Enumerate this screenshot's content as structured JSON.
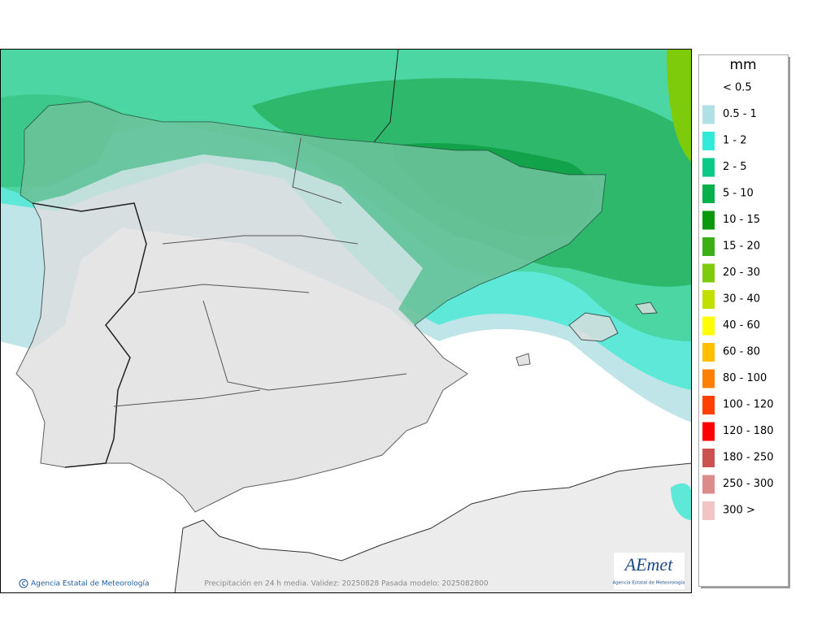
{
  "legend": {
    "title": "mm",
    "items": [
      {
        "label": "< 0.5"
      },
      {
        "label": "0.5 - 1",
        "color": "#b0dfe4"
      },
      {
        "label": "1 - 2",
        "color": "#33ead9"
      },
      {
        "label": "2 - 5",
        "color": "#08c985"
      },
      {
        "label": "5 - 10",
        "color": "#07b04c"
      },
      {
        "label": "10 - 15",
        "color": "#0a990c"
      },
      {
        "label": "15 - 20",
        "color": "#3caf14"
      },
      {
        "label": "20 - 30",
        "color": "#7dcb0b"
      },
      {
        "label": "30 - 40",
        "color": "#c2e000"
      },
      {
        "label": "40 - 60",
        "color": "#ffff00"
      },
      {
        "label": "60 - 80",
        "color": "#ffbf00"
      },
      {
        "label": "80 - 100",
        "color": "#ff8000"
      },
      {
        "label": "100 - 120",
        "color": "#ff4000"
      },
      {
        "label": "120 - 180",
        "color": "#ff0000"
      },
      {
        "label": "180 - 250",
        "color": "#cc5252"
      },
      {
        "label": "250 - 300",
        "color": "#dd8a8a"
      },
      {
        "label": "300 >",
        "color": "#f2c4c4"
      }
    ]
  },
  "footer": {
    "credit": "Agencia Estatal de Meteorología",
    "caption": "Precipitación en 24 h media. Validez: 20250828 Pasada modelo: 2025082800"
  },
  "logo": {
    "name": "AEmet",
    "subtitle": "Agencia Estatal de Meteorología"
  }
}
